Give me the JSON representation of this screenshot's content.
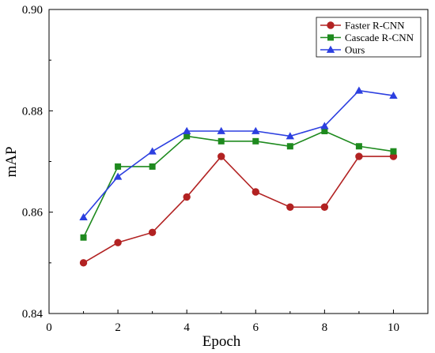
{
  "chart_data": {
    "type": "line",
    "title": "",
    "xlabel": "Epoch",
    "ylabel": "mAP",
    "xlim": [
      0,
      11
    ],
    "ylim": [
      0.84,
      0.9
    ],
    "x_ticks": [
      0,
      2,
      4,
      6,
      8,
      10
    ],
    "x_tick_labels": [
      "0",
      "2",
      "4",
      "6",
      "8",
      "10"
    ],
    "y_ticks": [
      0.84,
      0.86,
      0.88,
      0.9
    ],
    "y_tick_labels": [
      "0.84",
      "0.86",
      "0.88",
      "0.90"
    ],
    "grid": false,
    "legend_position": "top-right",
    "x": [
      1,
      2,
      3,
      4,
      5,
      6,
      7,
      8,
      9,
      10
    ],
    "series": [
      {
        "name": "Faster R-CNN",
        "color": "#b22222",
        "marker": "circle",
        "values": [
          0.85,
          0.854,
          0.856,
          0.863,
          0.871,
          0.864,
          0.861,
          0.861,
          0.871,
          0.871
        ]
      },
      {
        "name": "Cascade R-CNN",
        "color": "#1e8a1e",
        "marker": "square",
        "values": [
          0.855,
          0.869,
          0.869,
          0.875,
          0.874,
          0.874,
          0.873,
          0.876,
          0.873,
          0.872
        ]
      },
      {
        "name": "Ours",
        "color": "#2c3fe0",
        "marker": "triangle",
        "values": [
          0.859,
          0.867,
          0.872,
          0.876,
          0.876,
          0.876,
          0.875,
          0.877,
          0.884,
          0.883
        ]
      }
    ]
  }
}
